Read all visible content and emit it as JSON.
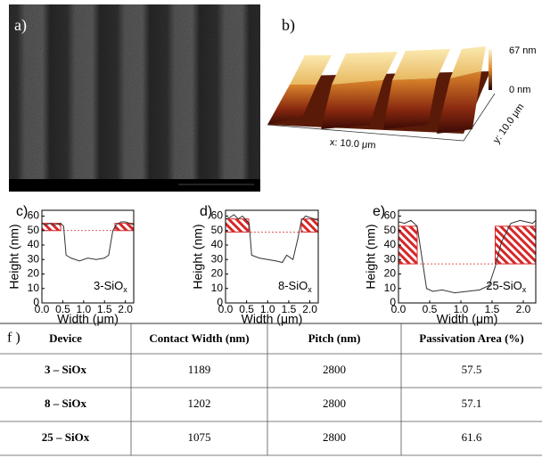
{
  "panels": {
    "a": {
      "label": "a)"
    },
    "b": {
      "label": "b)",
      "z_max": "67 nm",
      "z_min": "0 nm",
      "x_axis": "x: 10.0 μm",
      "y_axis": "y: 10.0 μm"
    }
  },
  "chart_data": [
    {
      "type": "line",
      "panel_label": "c)",
      "ylabel": "Height (nm)",
      "xlabel": "Width (μm)",
      "annotation": {
        "text": "3-SiO",
        "subscript": "x"
      },
      "x": [
        0,
        0.1,
        0.2,
        0.3,
        0.45,
        0.52,
        0.58,
        0.7,
        0.9,
        1.1,
        1.3,
        1.5,
        1.6,
        1.7,
        1.78,
        1.9,
        2.0,
        2.1,
        2.2
      ],
      "values": [
        55,
        54,
        55,
        54,
        55,
        53,
        33,
        31,
        29,
        31,
        30,
        31,
        33,
        50,
        54,
        56,
        56,
        55,
        54
      ],
      "color": "#333333",
      "threshold": 50,
      "hatch_top": 55,
      "hatch_x": [
        [
          0,
          0.45
        ],
        [
          1.75,
          2.2
        ]
      ],
      "hatch_color": "#d62728",
      "xlim": [
        0,
        2.2
      ],
      "ylim": [
        0,
        64
      ],
      "yticks": [
        0,
        10,
        20,
        30,
        40,
        50,
        60
      ],
      "xticks": [
        {
          "value": 0,
          "label": "0.0"
        },
        {
          "value": 0.5,
          "label": "0.5"
        },
        {
          "value": 1,
          "label": "1.0"
        },
        {
          "value": 1.5,
          "label": "1.5"
        },
        {
          "value": 2,
          "label": "2.0"
        }
      ]
    },
    {
      "type": "line",
      "panel_label": "d)",
      "ylabel": "Height (nm)",
      "xlabel": "Width (μm)",
      "annotation": {
        "text": "8-SiO",
        "subscript": "x"
      },
      "x": [
        0,
        0.1,
        0.2,
        0.3,
        0.4,
        0.5,
        0.56,
        0.62,
        0.8,
        1.0,
        1.2,
        1.35,
        1.45,
        1.6,
        1.72,
        1.8,
        1.9,
        2.0,
        2.1,
        2.2
      ],
      "values": [
        58,
        59,
        61,
        58,
        60,
        57,
        55,
        33,
        31,
        30,
        29,
        28,
        33,
        30,
        45,
        57,
        60,
        59,
        58,
        57
      ],
      "color": "#333333",
      "threshold": 49,
      "hatch_top": 58,
      "hatch_x": [
        [
          0,
          0.55
        ],
        [
          1.8,
          2.2
        ]
      ],
      "hatch_color": "#d62728",
      "xlim": [
        0,
        2.2
      ],
      "ylim": [
        0,
        64
      ],
      "yticks": [
        0,
        10,
        20,
        30,
        40,
        50,
        60
      ],
      "xticks": [
        {
          "value": 0,
          "label": "0.0"
        },
        {
          "value": 0.5,
          "label": "0.5"
        },
        {
          "value": 1,
          "label": "1.0"
        },
        {
          "value": 1.5,
          "label": "1.5"
        },
        {
          "value": 2,
          "label": "2.0"
        }
      ]
    },
    {
      "type": "line",
      "panel_label": "e)",
      "ylabel": "Height (nm)",
      "xlabel": "Width (μm)",
      "annotation": {
        "text": "25-SiO",
        "subscript": "x"
      },
      "x": [
        0,
        0.1,
        0.2,
        0.3,
        0.38,
        0.45,
        0.55,
        0.7,
        0.9,
        1.1,
        1.3,
        1.45,
        1.55,
        1.65,
        1.8,
        1.95,
        2.05,
        2.15,
        2.2
      ],
      "values": [
        56,
        55,
        57,
        53,
        30,
        10,
        8,
        9,
        7,
        8,
        9,
        12,
        25,
        42,
        55,
        57,
        56,
        55,
        57
      ],
      "color": "#333333",
      "threshold": 27,
      "hatch_top": 53,
      "hatch_x": [
        [
          0,
          0.3
        ],
        [
          1.55,
          2.2
        ]
      ],
      "hatch_color": "#d62728",
      "xlim": [
        0,
        2.2
      ],
      "ylim": [
        0,
        64
      ],
      "yticks": [
        0,
        10,
        20,
        30,
        40,
        50,
        60
      ],
      "xticks": [
        {
          "value": 0,
          "label": "0.0"
        },
        {
          "value": 0.5,
          "label": "0.5"
        },
        {
          "value": 1,
          "label": "1.0"
        },
        {
          "value": 1.5,
          "label": "1.5"
        },
        {
          "value": 2,
          "label": "2.0"
        }
      ]
    }
  ],
  "table": {
    "label": "f )",
    "header": [
      "Device",
      "Contact Width (nm)",
      "Pitch (nm)",
      "Passivation Area (%)"
    ],
    "rows": [
      [
        "3 – SiOx",
        1189,
        2800,
        57.5
      ],
      [
        "8 – SiOx",
        1202,
        2800,
        57.1
      ],
      [
        "25 – SiOx",
        1075,
        2800,
        61.6
      ]
    ]
  }
}
